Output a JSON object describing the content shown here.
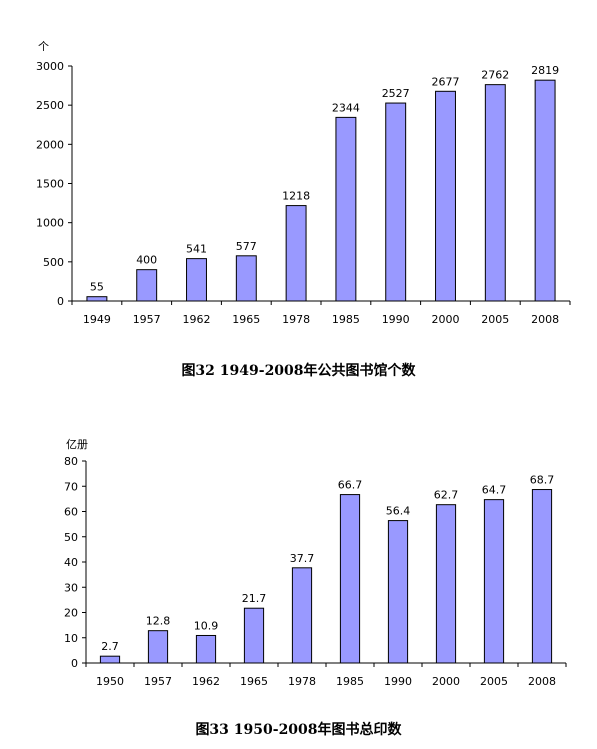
{
  "chart_data": [
    {
      "type": "bar",
      "title": "图32  1949-2008年公共图书馆个数",
      "ylabel": "个",
      "categories": [
        "1949",
        "1957",
        "1962",
        "1965",
        "1978",
        "1985",
        "1990",
        "2000",
        "2005",
        "2008"
      ],
      "values": [
        55,
        400,
        541,
        577,
        1218,
        2344,
        2527,
        2677,
        2762,
        2819
      ],
      "value_labels": [
        "55",
        "400",
        "541",
        "577",
        "1218",
        "2344",
        "2527",
        "2677",
        "2762",
        "2819"
      ],
      "ylim": [
        0,
        3000
      ],
      "yticks": [
        "0",
        "500",
        "1000",
        "1500",
        "2000",
        "2500",
        "3000"
      ],
      "grid": false,
      "bar_color": "#9999ff"
    },
    {
      "type": "bar",
      "title": "图33  1950-2008年图书总印数",
      "ylabel": "亿册",
      "categories": [
        "1950",
        "1957",
        "1962",
        "1965",
        "1978",
        "1985",
        "1990",
        "2000",
        "2005",
        "2008"
      ],
      "values": [
        2.7,
        12.8,
        10.9,
        21.7,
        37.7,
        66.7,
        56.4,
        62.7,
        64.7,
        68.7
      ],
      "value_labels": [
        "2.7",
        "12.8",
        "10.9",
        "21.7",
        "37.7",
        "66.7",
        "56.4",
        "62.7",
        "64.7",
        "68.7"
      ],
      "ylim": [
        0,
        80
      ],
      "yticks": [
        "0",
        "10",
        "20",
        "30",
        "40",
        "50",
        "60",
        "70",
        "80"
      ],
      "grid": false,
      "bar_color": "#9999ff"
    }
  ]
}
